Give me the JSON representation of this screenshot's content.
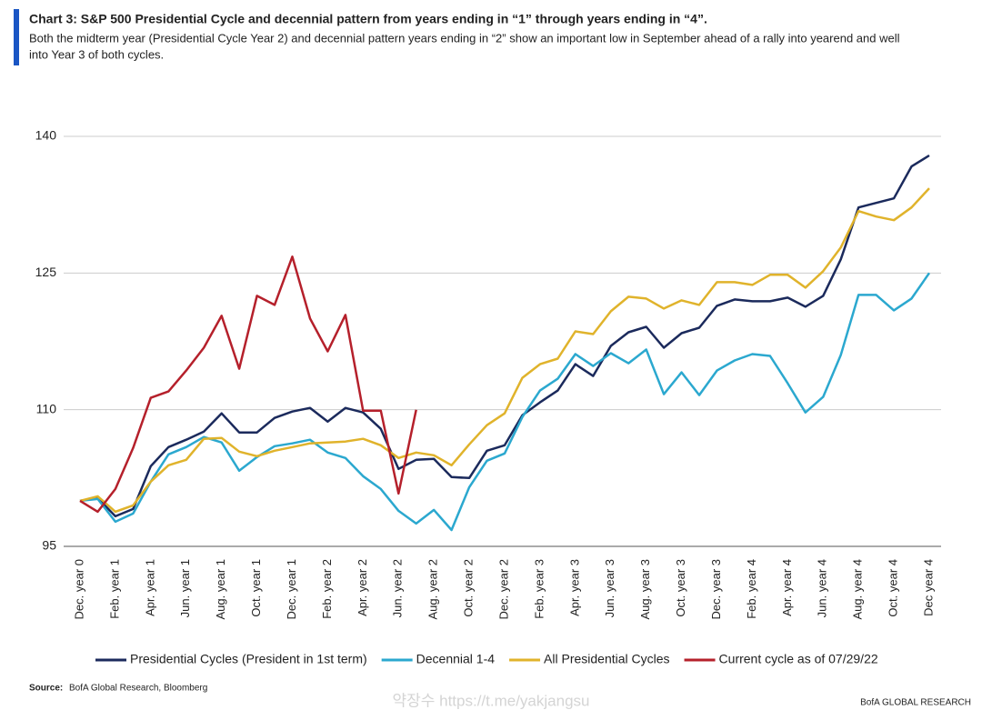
{
  "chart_data": {
    "type": "line",
    "title": "Chart 3: S&P 500 Presidential Cycle and decennial pattern from years ending in “1” through years ending in “4”.",
    "subtitle_lines": [
      "Both the midterm year (Presidential Cycle Year 2) and decennial pattern years ending in “2” show an important low in September ahead of a rally into yearend and well",
      "into Year 3 of both cycles."
    ],
    "categories": [
      "Dec. year 0",
      null,
      "Feb. year 1",
      null,
      "Apr. year 1",
      null,
      "Jun. year 1",
      null,
      "Aug. year 1",
      null,
      "Oct. year 1",
      null,
      "Dec. year 1",
      null,
      "Feb. year 2",
      null,
      "Apr. year 2",
      null,
      "Jun. year 2",
      null,
      "Aug. year 2",
      null,
      "Oct. year 2",
      null,
      "Dec. year 2",
      null,
      "Feb. year 3",
      null,
      "Apr. year 3",
      null,
      "Jun. year 3",
      null,
      "Aug. year 3",
      null,
      "Oct. year 3",
      null,
      "Dec. year 3",
      null,
      "Feb. year 4",
      null,
      "Apr. year 4",
      null,
      "Jun. year 4",
      null,
      "Aug. year 4",
      null,
      "Oct. year 4",
      null,
      "Dec year 4"
    ],
    "series": [
      {
        "name": "Presidential Cycles (President in 1st term)",
        "color": "#1b2a5c",
        "values": [
          100,
          100.3,
          98.3,
          99.1,
          103.8,
          105.9,
          106.7,
          107.6,
          109.6,
          107.5,
          107.5,
          109.1,
          109.8,
          110.2,
          108.7,
          110.2,
          109.7,
          107.9,
          103.5,
          104.5,
          104.6,
          102.6,
          102.5,
          105.5,
          106.1,
          109.4,
          110.8,
          112.1,
          115,
          113.7,
          117,
          118.5,
          119.1,
          116.8,
          118.4,
          119,
          121.4,
          122.1,
          121.9,
          121.9,
          122.3,
          121.3,
          122.5,
          126.5,
          132.2,
          132.7,
          133.2,
          136.7,
          137.9
        ]
      },
      {
        "name": "Decennial 1-4",
        "color": "#2ba8cf",
        "values": [
          100,
          100.2,
          97.7,
          98.6,
          102.1,
          105.1,
          105.9,
          107,
          106.4,
          103.3,
          104.8,
          106,
          106.3,
          106.7,
          105.3,
          104.7,
          102.7,
          101.3,
          98.9,
          97.5,
          99,
          96.8,
          101.5,
          104.4,
          105.2,
          109.2,
          112.1,
          113.4,
          116.1,
          114.8,
          116.2,
          115.1,
          116.6,
          111.7,
          114.1,
          111.6,
          114.3,
          115.4,
          116.1,
          115.9,
          112.9,
          109.7,
          111.4,
          116,
          122.6,
          122.6,
          120.9,
          122.2,
          125
        ]
      },
      {
        "name": "All Presidential Cycles",
        "color": "#e0b32b",
        "values": [
          100,
          100.5,
          98.8,
          99.5,
          102.1,
          103.9,
          104.5,
          106.8,
          106.9,
          105.4,
          104.9,
          105.5,
          105.9,
          106.3,
          106.4,
          106.5,
          106.8,
          106.1,
          104.7,
          105.3,
          105,
          103.9,
          106.2,
          108.3,
          109.6,
          113.5,
          115,
          115.6,
          118.6,
          118.3,
          120.8,
          122.4,
          122.2,
          121.1,
          122,
          121.5,
          124,
          124,
          123.7,
          124.8,
          124.8,
          123.4,
          125.2,
          127.8,
          131.8,
          131.2,
          130.8,
          132.2,
          134.3
        ]
      },
      {
        "name": "Current cycle as of 07/29/22",
        "color": "#b5202b",
        "values": [
          100,
          98.8,
          101.3,
          105.8,
          111.3,
          112,
          114.3,
          116.8,
          120.3,
          114.5,
          122.5,
          121.5,
          126.8,
          120,
          116.4,
          120.4,
          109.9,
          109.9,
          100.8,
          110,
          null,
          null,
          null,
          null,
          null,
          null,
          null,
          null,
          null,
          null,
          null,
          null,
          null,
          null,
          null,
          null,
          null,
          null,
          null,
          null,
          null,
          null,
          null,
          null,
          null,
          null,
          null,
          null,
          null
        ]
      }
    ],
    "ylim": [
      95,
      140
    ],
    "yticks": [
      95,
      110,
      125,
      140
    ],
    "grid": true,
    "source_label": "Source:",
    "source": "BofA Global Research, Bloomberg",
    "footer": "BofA GLOBAL RESEARCH",
    "watermark": "약장수 https://t.me/yakjangsu"
  }
}
